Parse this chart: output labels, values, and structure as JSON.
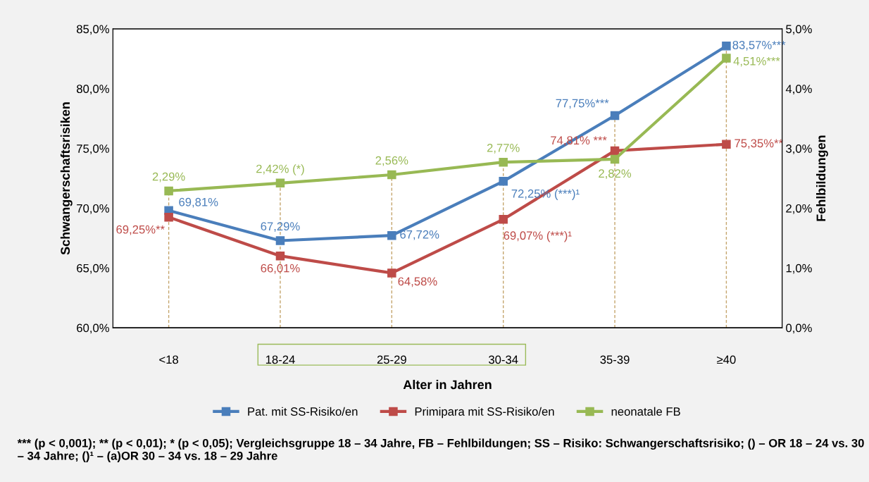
{
  "chart_data": {
    "type": "line",
    "xlabel": "Alter in Jahren",
    "ylabel": "Schwangerschaftsrisiken",
    "y2label": "Fehlbildungen",
    "categories": [
      "<18",
      "18-24",
      "25-29",
      "30-34",
      "35-39",
      "≥40"
    ],
    "series": [
      {
        "name": "Pat. mit SS-Risiko/en",
        "color": "#4a7ebb",
        "values": [
          69.81,
          67.29,
          67.72,
          72.25,
          77.75,
          83.57
        ],
        "value_labels": [
          "69,81%",
          "67,29%",
          "67,72%",
          "72,25% (***)¹",
          "77,75%***",
          "83,57%***"
        ]
      },
      {
        "name": "Primipara mit SS-Risiko/en",
        "color": "#be4b48",
        "values": [
          69.25,
          66.01,
          64.58,
          69.07,
          74.81,
          75.35
        ],
        "value_labels": [
          "69,25%**",
          "66,01%",
          "64,58%",
          "69,07% (***)¹",
          "74,81% ***",
          "75,35%**"
        ]
      },
      {
        "name": "neonatale FB",
        "color": "#98b954",
        "axis": "y2",
        "values": [
          2.29,
          2.42,
          2.56,
          2.77,
          2.82,
          4.51
        ],
        "value_labels": [
          "2,29%",
          "2,42% (*)",
          "2,56%",
          "2,77%",
          "2,82%",
          "4,51%***"
        ]
      }
    ],
    "ylim": [
      60,
      85
    ],
    "yticks": [
      {
        "value": 60,
        "label": "60,0%"
      },
      {
        "value": 65,
        "label": "65,0%"
      },
      {
        "value": 70,
        "label": "70,0%"
      },
      {
        "value": 75,
        "label": "75,0%"
      },
      {
        "value": 80,
        "label": "80,0%"
      },
      {
        "value": 85,
        "label": "85,0%"
      }
    ],
    "y2lim": [
      0,
      5
    ],
    "y2ticks": [
      {
        "value": 0,
        "label": "0,0%"
      },
      {
        "value": 1,
        "label": "1,0%"
      },
      {
        "value": 2,
        "label": "2,0%"
      },
      {
        "value": 3,
        "label": "3,0%"
      },
      {
        "value": 4,
        "label": "4,0%"
      },
      {
        "value": 5,
        "label": "5,0%"
      }
    ],
    "marker": "square",
    "line_style": "solid",
    "grid": "x",
    "legend": "bottom",
    "annotations": [
      "*** (p < 0,001); ** (p < 0,01); * (p < 0,05); Vergleichsgruppe 18 – 34 Jahre, FB – Fehlbildungen; SS – Risiko: Schwangerschaftsrisiko; () – OR 18 – 24 vs. 30 – 34 Jahre; ()¹ – (a)OR 30 – 34 vs. 18 – 29 Jahre"
    ]
  }
}
